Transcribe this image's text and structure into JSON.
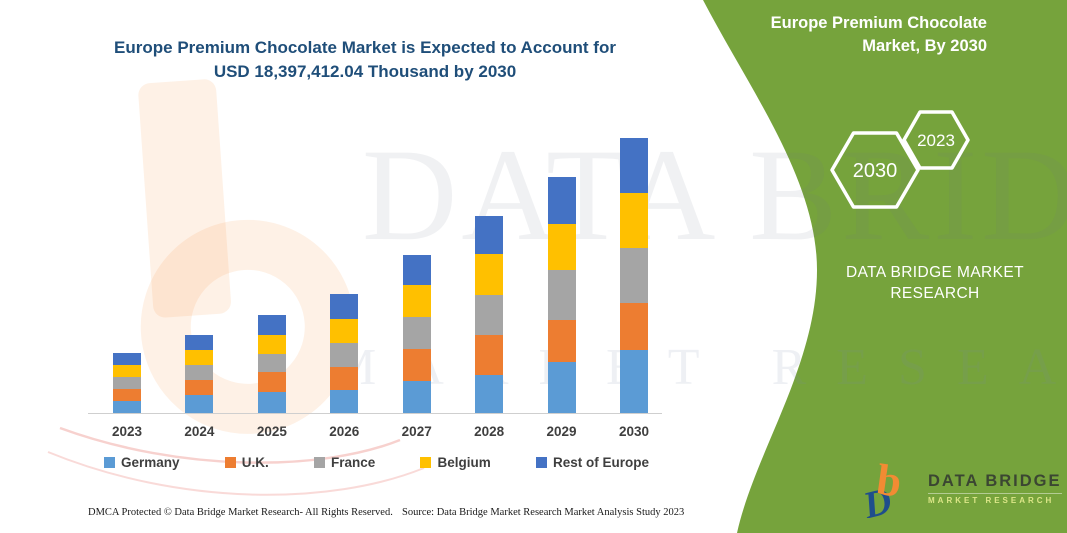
{
  "header": {
    "title_line1": "Europe Premium Chocolate Market is Expected to Account for",
    "title_line2": "USD 18,397,412.04 Thousand by 2030"
  },
  "side_panel": {
    "accent_green": "#76A33C",
    "title_line1": "Europe Premium Chocolate",
    "title_line2": "Market, By 2030",
    "hexagon_large_label": "2030",
    "hexagon_small_label": "2023",
    "brand_line1": "DATA BRIDGE MARKET",
    "brand_line2": "RESEARCH"
  },
  "logo": {
    "name": "DATA BRIDGE",
    "subline": "MARKET RESEARCH"
  },
  "watermark": {
    "text1": "DATA BRIDGE",
    "text2": "MARKET RESEARCH"
  },
  "footer": {
    "dmca": "DMCA Protected © Data Bridge Market Research-  All Rights Reserved.",
    "source": "Source: Data Bridge Market Research  Market Analysis Study 2023"
  },
  "chart_data": {
    "type": "bar",
    "stacked": true,
    "title": "Europe Premium Chocolate Market is Expected to Account for USD 18,397,412.04 Thousand by 2030",
    "unit": "USD Thousand",
    "xlabel": "",
    "ylabel": "",
    "grid": false,
    "legend_position": "bottom",
    "ylim": [
      0,
      18400000
    ],
    "values_note": "Segment values estimated from bar heights; 2030 total stated as 18,397,412.04 USD Thousand",
    "categories": [
      "2023",
      "2024",
      "2025",
      "2026",
      "2027",
      "2028",
      "2029",
      "2030"
    ],
    "series": [
      {
        "name": "Germany",
        "color": "#5B9BD5",
        "values": [
          804600,
          1206800,
          1428100,
          1515300,
          2165600,
          2574600,
          3419400,
          4183500
        ]
      },
      {
        "name": "U.K.",
        "color": "#ED7D31",
        "values": [
          831400,
          1025800,
          1294000,
          1568900,
          2125400,
          2614800,
          2795800,
          3151200
        ]
      },
      {
        "name": "France",
        "color": "#A5A5A5",
        "values": [
          777700,
          985600,
          1233700,
          1629200,
          2118700,
          2702000,
          3332200,
          3727800
        ]
      },
      {
        "name": "Belgium",
        "color": "#FFC000",
        "values": [
          784400,
          1005700,
          1273900,
          1609100,
          2125400,
          2728800,
          3084100,
          3687600
        ]
      },
      {
        "name": "Rest of Europe",
        "color": "#4472C4",
        "values": [
          784400,
          1005700,
          1340900,
          1609100,
          2011400,
          2567900,
          3171300,
          3647300
        ]
      }
    ]
  }
}
